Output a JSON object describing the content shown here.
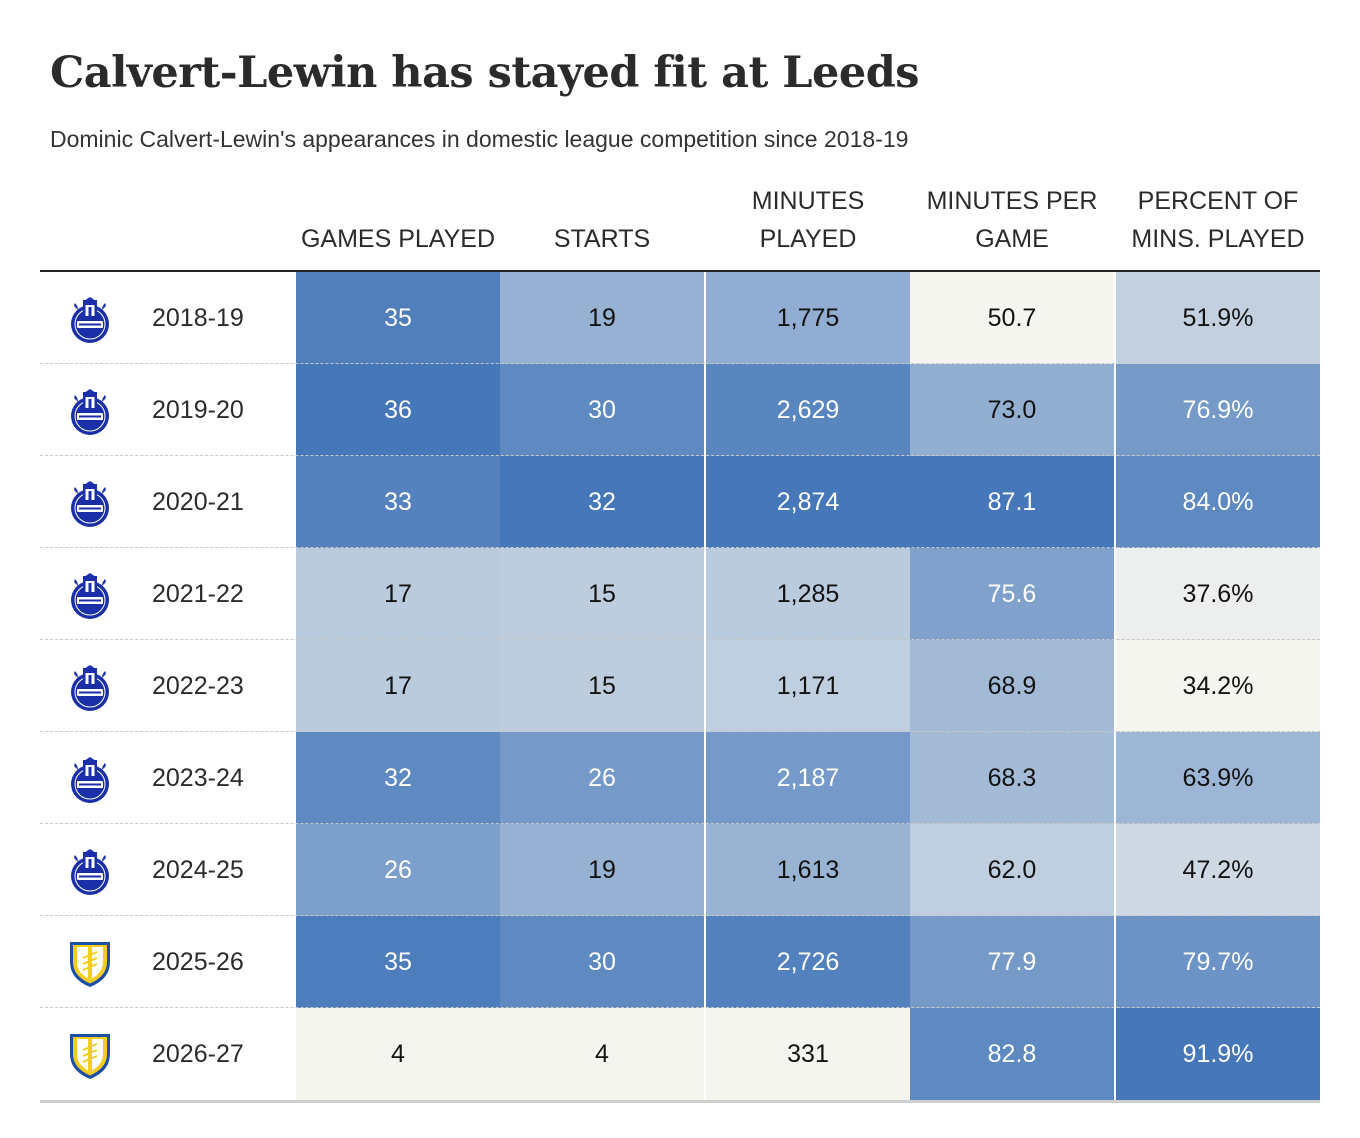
{
  "chart_data": {
    "type": "table",
    "title": "Calvert-Lewin has stayed fit at Leeds",
    "subtitle": "Dominic Calvert-Lewin's appearances in domestic league competition since 2018-19",
    "columns": [
      "GAMES PLAYED",
      "STARTS",
      "MINUTES PLAYED",
      "MINUTES PER GAME",
      "PERCENT OF MINS. PLAYED"
    ],
    "rows": [
      {
        "club": "everton",
        "season": "2018-19",
        "values": [
          "35",
          "19",
          "1,775",
          "50.7",
          "51.9%"
        ],
        "levels": [
          0.94,
          0.54,
          0.57,
          0.0,
          0.29
        ]
      },
      {
        "club": "everton",
        "season": "2019-20",
        "values": [
          "36",
          "30",
          "2,629",
          "73.0",
          "76.9%"
        ],
        "levels": [
          1.0,
          0.85,
          0.88,
          0.56,
          0.72
        ]
      },
      {
        "club": "everton",
        "season": "2020-21",
        "values": [
          "33",
          "32",
          "2,874",
          "87.1",
          "84.0%"
        ],
        "levels": [
          0.91,
          1.0,
          1.0,
          1.0,
          0.86
        ]
      },
      {
        "club": "everton",
        "season": "2021-22",
        "values": [
          "17",
          "15",
          "1,285",
          "75.6",
          "37.6%"
        ],
        "levels": [
          0.33,
          0.32,
          0.33,
          0.67,
          0.05
        ]
      },
      {
        "club": "everton",
        "season": "2022-23",
        "values": [
          "17",
          "15",
          "1,171",
          "68.9",
          "34.2%"
        ],
        "levels": [
          0.33,
          0.32,
          0.3,
          0.47,
          0.0
        ]
      },
      {
        "club": "everton",
        "season": "2023-24",
        "values": [
          "32",
          "26",
          "2,187",
          "68.3",
          "63.9%"
        ],
        "levels": [
          0.86,
          0.73,
          0.73,
          0.46,
          0.5
        ]
      },
      {
        "club": "everton",
        "season": "2024-25",
        "values": [
          "26",
          "19",
          "1,613",
          "62.0",
          "47.2%"
        ],
        "levels": [
          0.68,
          0.54,
          0.52,
          0.3,
          0.22
        ]
      },
      {
        "club": "leeds",
        "season": "2025-26",
        "values": [
          "35",
          "30",
          "2,726",
          "77.9",
          "79.7%"
        ],
        "levels": [
          0.95,
          0.85,
          0.92,
          0.72,
          0.78
        ]
      },
      {
        "club": "leeds",
        "season": "2026-27",
        "values": [
          "4",
          "4",
          "331",
          "82.8",
          "91.9%"
        ],
        "levels": [
          0.0,
          0.0,
          0.0,
          0.85,
          1.0
        ]
      }
    ],
    "colors": {
      "low": "#f5f5f0",
      "high": "#4577b9",
      "light_text": "#ffffff",
      "dark_text": "#121212",
      "everton_blue": "#1b2fa8",
      "leeds_yellow": "#f2cd1e"
    }
  }
}
